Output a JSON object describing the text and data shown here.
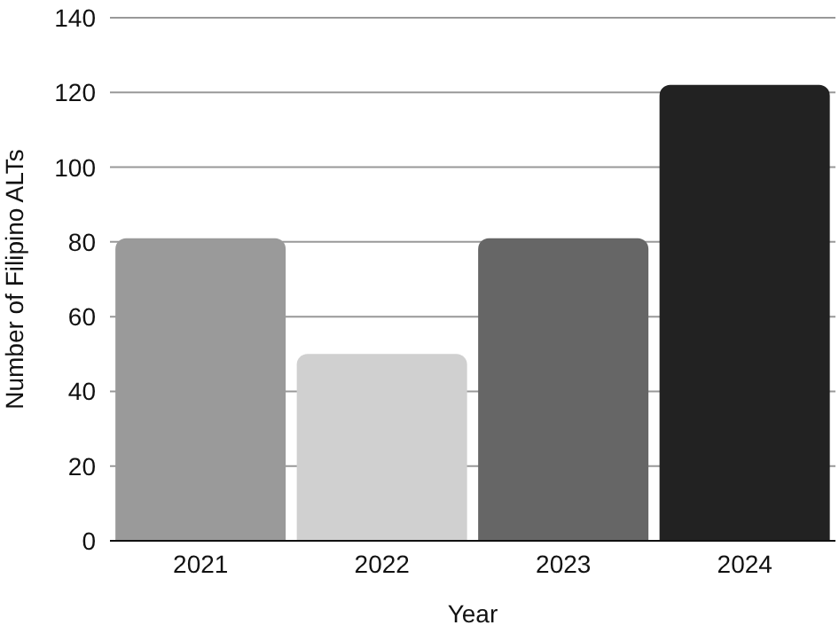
{
  "chart_data": {
    "type": "bar",
    "xlabel": "Year",
    "ylabel": "Number of Filipino ALTs",
    "categories": [
      "2021",
      "2022",
      "2023",
      "2024"
    ],
    "values": [
      81,
      50,
      81,
      122
    ],
    "colors": [
      "#9a9a9a",
      "#d0d0d0",
      "#666666",
      "#222222"
    ],
    "ylim": [
      0,
      140
    ],
    "yticks": [
      0,
      20,
      40,
      60,
      80,
      100,
      120,
      140
    ],
    "grid": "y"
  }
}
